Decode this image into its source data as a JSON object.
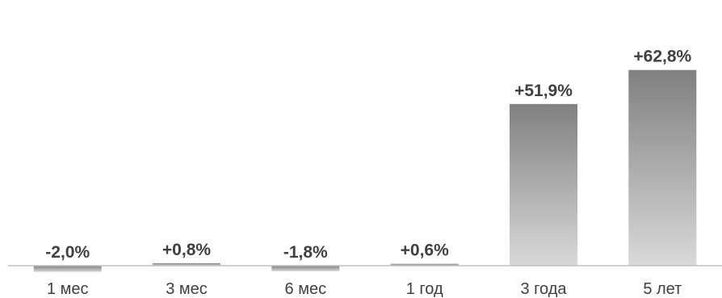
{
  "chart_data": {
    "type": "bar",
    "categories": [
      "1 мес",
      "3 мес",
      "6 мес",
      "1 год",
      "3 года",
      "5 лет"
    ],
    "values": [
      -2.0,
      0.8,
      -1.8,
      0.6,
      51.9,
      62.8
    ],
    "data_labels": [
      "-2,0%",
      "+0,8%",
      "-1,8%",
      "+0,6%",
      "+51,9%",
      "+62,8%"
    ],
    "title": "",
    "xlabel": "",
    "ylabel": "",
    "ylim": [
      -2.5,
      65
    ],
    "grid": false,
    "legend": "none",
    "colors": {
      "bar_top": "#808080",
      "bar_bottom": "#d9d9d9",
      "axis": "#bfbfbf",
      "text": "#404040"
    }
  }
}
